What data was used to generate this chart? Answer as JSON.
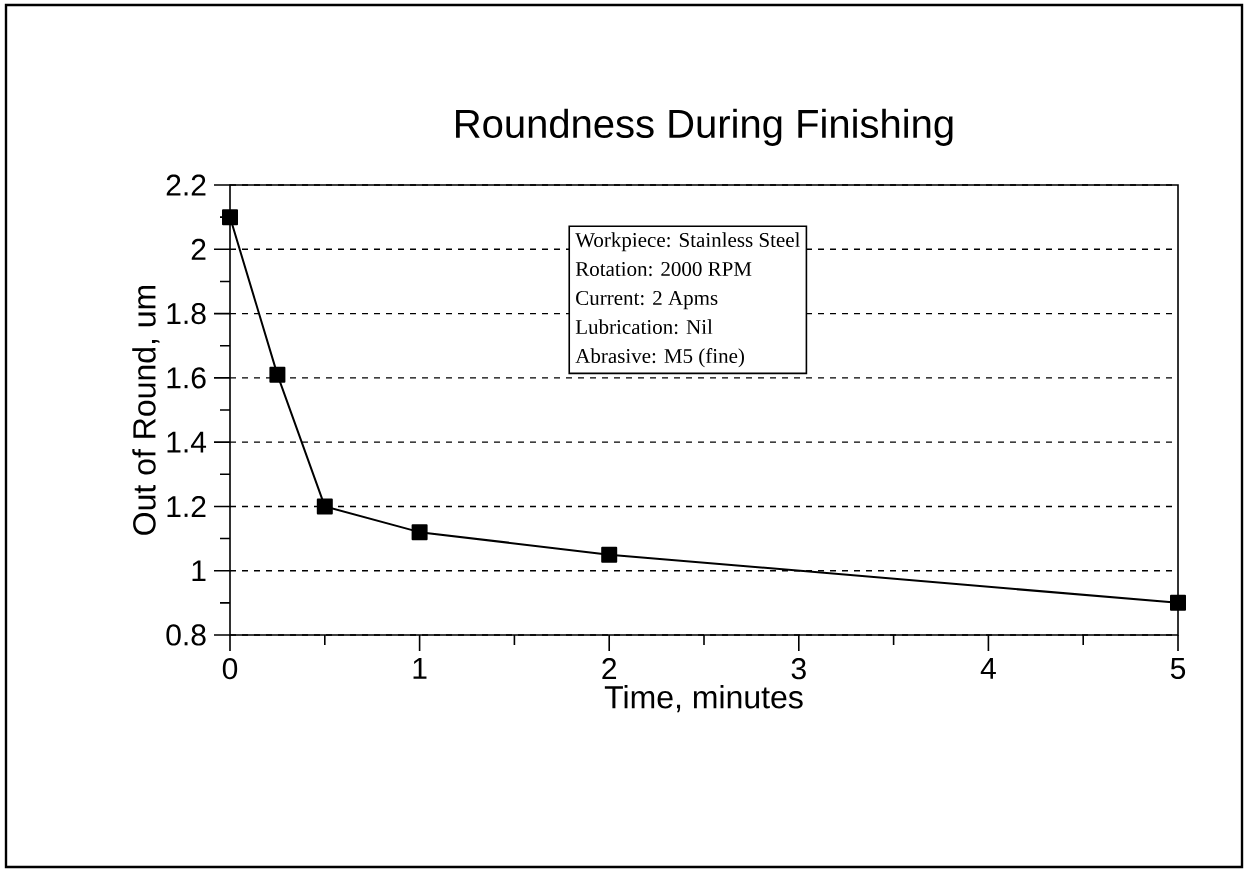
{
  "chart_data": {
    "type": "line",
    "title": "Roundness During Finishing",
    "xlabel": "Time, minutes",
    "ylabel": "Out of Round, um",
    "x": [
      0,
      0.25,
      0.5,
      1,
      2,
      5
    ],
    "series": [
      {
        "color": "#000000",
        "values": [
          2.1,
          1.61,
          1.2,
          1.12,
          1.05,
          0.9
        ]
      }
    ],
    "xlim": [
      0,
      5
    ],
    "ylim": [
      0.8,
      2.2
    ],
    "xticks": [
      0,
      1,
      2,
      3,
      4,
      5
    ],
    "yticks": [
      0.8,
      1,
      1.2,
      1.4,
      1.6,
      1.8,
      2,
      2.2
    ],
    "grid": "y",
    "marker": "square",
    "line_style": "solid",
    "annotations": [
      "Workpiece: Stainless Steel",
      "Rotation: 2000 RPM",
      "Current: 2 Apms",
      "Lubrication: Nil",
      "Abrasive: M5 (fine)"
    ]
  }
}
